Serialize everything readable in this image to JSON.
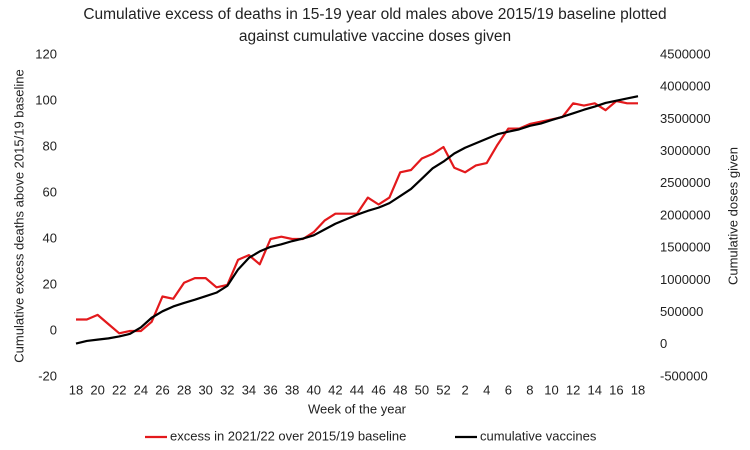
{
  "chart_data": {
    "type": "line",
    "title": "Cumulative excess of deaths in 15-19 year old males above 2015/19 baseline plotted against cumulative vaccine doses given",
    "xlabel": "Week of the year",
    "ylabel": "Cumulative excess deaths above 2015/19 baseline",
    "y2label": "Cumulative doses given",
    "categories": [
      "18",
      null,
      "20",
      null,
      "22",
      null,
      "24",
      null,
      "26",
      null,
      "28",
      null,
      "30",
      null,
      "32",
      null,
      "34",
      null,
      "36",
      null,
      "38",
      null,
      "40",
      null,
      "42",
      null,
      "44",
      null,
      "46",
      null,
      "48",
      null,
      "50",
      null,
      "52",
      null,
      "2",
      null,
      "4",
      null,
      "6",
      null,
      "8",
      null,
      "10",
      null,
      "12",
      null,
      "14",
      null,
      "16",
      null,
      "18"
    ],
    "series": [
      {
        "name": "excess in 2021/22 over 2015/19 baseline",
        "color": "#e3191c",
        "axis": "y",
        "values": [
          5,
          5,
          7,
          3,
          -1,
          0,
          0,
          4,
          15,
          14,
          21,
          23,
          23,
          19,
          20,
          31,
          33,
          29,
          40,
          41,
          40,
          40,
          43,
          48,
          51,
          51,
          51,
          58,
          55,
          58,
          69,
          70,
          75,
          77,
          80,
          71,
          69,
          72,
          73,
          81,
          88,
          88,
          90,
          91,
          92,
          93,
          99,
          98,
          99,
          96,
          100,
          99,
          99
        ]
      },
      {
        "name": "cumulative vaccines",
        "color": "#000000",
        "axis": "y2",
        "values": [
          20000,
          60000,
          80000,
          100000,
          130000,
          170000,
          270000,
          420000,
          520000,
          595000,
          650000,
          700000,
          755000,
          810000,
          915000,
          1170000,
          1350000,
          1450000,
          1520000,
          1560000,
          1610000,
          1650000,
          1700000,
          1790000,
          1880000,
          1950000,
          2020000,
          2080000,
          2130000,
          2200000,
          2310000,
          2420000,
          2580000,
          2740000,
          2845000,
          2970000,
          3060000,
          3130000,
          3200000,
          3270000,
          3310000,
          3345000,
          3400000,
          3435000,
          3490000,
          3540000,
          3595000,
          3650000,
          3700000,
          3755000,
          3790000,
          3825000,
          3860000
        ]
      }
    ],
    "ylim": [
      -20,
      120
    ],
    "yticks": [
      -20,
      0,
      20,
      40,
      60,
      80,
      100,
      120
    ],
    "y2lim": [
      -500000,
      4500000
    ],
    "y2ticks": [
      -500000,
      0,
      500000,
      1000000,
      1500000,
      2000000,
      2500000,
      3000000,
      3500000,
      4000000,
      4500000
    ],
    "grid": false,
    "legend": "bottom"
  }
}
